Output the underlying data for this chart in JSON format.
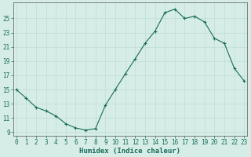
{
  "x": [
    0,
    1,
    2,
    3,
    4,
    5,
    6,
    7,
    8,
    9,
    10,
    11,
    12,
    13,
    14,
    15,
    16,
    17,
    18,
    19,
    20,
    21,
    22,
    23
  ],
  "y": [
    15.0,
    13.8,
    12.5,
    12.0,
    11.3,
    10.2,
    9.6,
    9.3,
    9.5,
    12.8,
    15.0,
    17.2,
    19.3,
    21.5,
    23.2,
    25.8,
    26.3,
    25.0,
    25.3,
    24.5,
    22.2,
    21.5,
    18.0,
    16.2
  ],
  "xlabel": "Humidex (Indice chaleur)",
  "ylabel": "",
  "yticks": [
    9,
    11,
    13,
    15,
    17,
    19,
    21,
    23,
    25
  ],
  "xticks": [
    0,
    1,
    2,
    3,
    4,
    5,
    6,
    7,
    8,
    9,
    10,
    11,
    12,
    13,
    14,
    15,
    16,
    17,
    18,
    19,
    20,
    21,
    22,
    23
  ],
  "xlim": [
    -0.3,
    23.3
  ],
  "ylim": [
    8.5,
    27.2
  ],
  "line_color": "#1a6b5a",
  "marker_color": "#1a6b5a",
  "bg_color": "#d5ede6",
  "grid_color_major": "#c0ddd6",
  "grid_color_minor": "#c0ddd6",
  "axis_color": "#555555",
  "font_color": "#1a6b5a",
  "tick_font_size": 5.5,
  "xlabel_font_size": 6.5
}
